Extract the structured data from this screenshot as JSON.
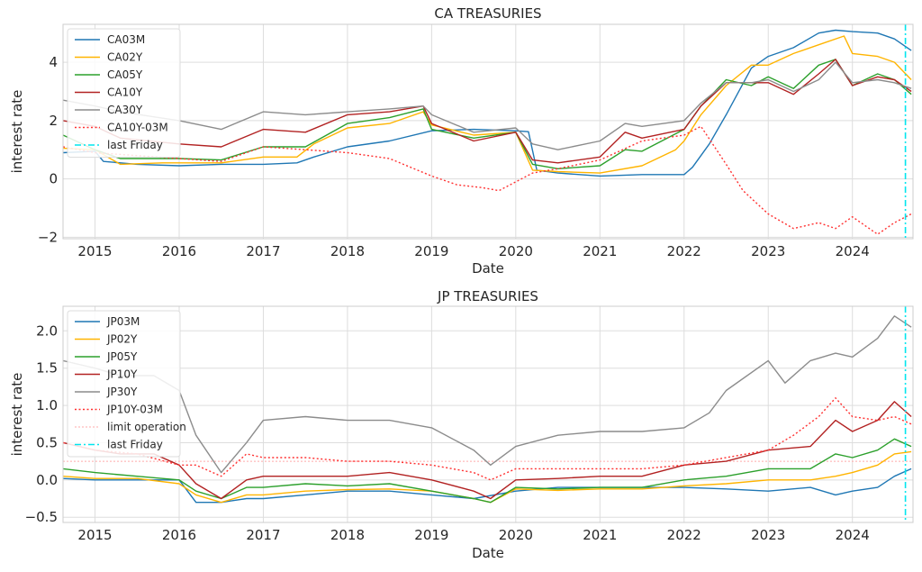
{
  "chart_data": [
    {
      "type": "line",
      "title": "CA TREASURIES",
      "xlabel": "Date",
      "ylabel": "interest rate",
      "xlim": [
        2014.62,
        2024.72
      ],
      "ylim": [
        -2.05,
        5.3
      ],
      "x_ticks": [
        2015,
        2016,
        2017,
        2018,
        2019,
        2020,
        2021,
        2022,
        2023,
        2024
      ],
      "x_tick_labels": [
        "2015",
        "2016",
        "2017",
        "2018",
        "2019",
        "2020",
        "2021",
        "2022",
        "2023",
        "2024"
      ],
      "y_ticks": [
        -2,
        0,
        2,
        4
      ],
      "y_tick_labels": [
        "−2",
        "0",
        "2",
        "4"
      ],
      "grid": true,
      "legend_position": "top-left",
      "last_friday": 2024.63,
      "series": [
        {
          "name": "CA03M",
          "color": "#1f77b4",
          "style": "solid",
          "x": [
            2014.62,
            2015.0,
            2015.1,
            2015.5,
            2016.0,
            2016.5,
            2017.0,
            2017.4,
            2017.6,
            2018.0,
            2018.5,
            2019.0,
            2019.5,
            2020.0,
            2020.15,
            2020.25,
            2020.5,
            2021.0,
            2021.5,
            2022.0,
            2022.1,
            2022.3,
            2022.5,
            2022.8,
            2023.0,
            2023.3,
            2023.6,
            2023.8,
            2024.0,
            2024.3,
            2024.5,
            2024.7
          ],
          "y": [
            0.9,
            0.95,
            0.6,
            0.5,
            0.45,
            0.5,
            0.5,
            0.55,
            0.75,
            1.1,
            1.3,
            1.65,
            1.7,
            1.65,
            1.62,
            0.3,
            0.2,
            0.1,
            0.15,
            0.15,
            0.4,
            1.2,
            2.2,
            3.8,
            4.2,
            4.5,
            5.0,
            5.1,
            5.05,
            5.0,
            4.8,
            4.4
          ]
        },
        {
          "name": "CA02Y",
          "color": "#ffb400",
          "style": "solid",
          "x": [
            2014.62,
            2015.0,
            2015.3,
            2015.8,
            2016.0,
            2016.5,
            2017.0,
            2017.4,
            2017.6,
            2018.0,
            2018.5,
            2018.9,
            2019.0,
            2019.5,
            2020.0,
            2020.2,
            2020.5,
            2021.0,
            2021.5,
            2021.9,
            2022.0,
            2022.2,
            2022.5,
            2022.8,
            2023.0,
            2023.3,
            2023.6,
            2023.9,
            2024.0,
            2024.3,
            2024.5,
            2024.7
          ],
          "y": [
            1.05,
            1.0,
            0.5,
            0.55,
            0.55,
            0.55,
            0.75,
            0.75,
            1.2,
            1.75,
            1.9,
            2.3,
            1.85,
            1.5,
            1.6,
            0.3,
            0.25,
            0.2,
            0.45,
            1.0,
            1.3,
            2.2,
            3.2,
            3.9,
            3.9,
            4.3,
            4.6,
            4.9,
            4.3,
            4.2,
            4.0,
            3.4
          ]
        },
        {
          "name": "CA05Y",
          "color": "#2ca02c",
          "style": "solid",
          "x": [
            2014.62,
            2015.0,
            2015.3,
            2016.0,
            2016.5,
            2017.0,
            2017.5,
            2018.0,
            2018.5,
            2018.9,
            2019.0,
            2019.5,
            2020.0,
            2020.2,
            2020.5,
            2021.0,
            2021.3,
            2021.5,
            2022.0,
            2022.2,
            2022.5,
            2022.8,
            2023.0,
            2023.3,
            2023.6,
            2023.8,
            2024.0,
            2024.3,
            2024.5,
            2024.7
          ],
          "y": [
            1.5,
            1.0,
            0.7,
            0.7,
            0.65,
            1.1,
            1.1,
            1.9,
            2.1,
            2.4,
            1.7,
            1.4,
            1.6,
            0.5,
            0.35,
            0.45,
            1.0,
            0.95,
            1.7,
            2.5,
            3.4,
            3.2,
            3.5,
            3.1,
            3.9,
            4.1,
            3.2,
            3.6,
            3.4,
            2.9
          ]
        },
        {
          "name": "CA10Y",
          "color": "#b22222",
          "style": "solid",
          "x": [
            2014.62,
            2015.0,
            2015.3,
            2016.0,
            2016.5,
            2017.0,
            2017.5,
            2018.0,
            2018.5,
            2018.9,
            2019.0,
            2019.5,
            2020.0,
            2020.2,
            2020.5,
            2021.0,
            2021.3,
            2021.5,
            2022.0,
            2022.2,
            2022.5,
            2022.8,
            2023.0,
            2023.3,
            2023.6,
            2023.8,
            2024.0,
            2024.3,
            2024.5,
            2024.7
          ],
          "y": [
            2.0,
            1.8,
            1.4,
            1.2,
            1.1,
            1.7,
            1.6,
            2.2,
            2.3,
            2.5,
            1.9,
            1.3,
            1.6,
            0.65,
            0.55,
            0.75,
            1.6,
            1.4,
            1.7,
            2.5,
            3.3,
            3.3,
            3.3,
            2.9,
            3.6,
            4.1,
            3.2,
            3.5,
            3.4,
            3.0
          ]
        },
        {
          "name": "CA30Y",
          "color": "#8c8c8c",
          "style": "solid",
          "x": [
            2014.62,
            2015.0,
            2015.3,
            2016.0,
            2016.5,
            2017.0,
            2017.5,
            2018.0,
            2018.5,
            2018.9,
            2019.0,
            2019.5,
            2020.0,
            2020.2,
            2020.5,
            2021.0,
            2021.3,
            2021.5,
            2022.0,
            2022.2,
            2022.5,
            2022.8,
            2023.0,
            2023.3,
            2023.6,
            2023.8,
            2024.0,
            2024.3,
            2024.5,
            2024.7
          ],
          "y": [
            2.7,
            2.5,
            2.3,
            2.0,
            1.7,
            2.3,
            2.2,
            2.3,
            2.4,
            2.5,
            2.2,
            1.6,
            1.75,
            1.2,
            1.0,
            1.3,
            1.9,
            1.8,
            2.0,
            2.6,
            3.3,
            3.3,
            3.4,
            3.0,
            3.4,
            4.0,
            3.3,
            3.4,
            3.3,
            3.1
          ]
        },
        {
          "name": "CA10Y-03M",
          "color": "#ff3030",
          "style": "dotted",
          "x": [
            2014.62,
            2015.0,
            2015.5,
            2016.0,
            2016.5,
            2017.0,
            2017.5,
            2018.0,
            2018.5,
            2019.0,
            2019.3,
            2019.6,
            2019.8,
            2020.0,
            2020.2,
            2020.5,
            2021.0,
            2021.5,
            2022.0,
            2022.2,
            2022.5,
            2022.7,
            2023.0,
            2023.3,
            2023.6,
            2023.8,
            2024.0,
            2024.3,
            2024.5,
            2024.7
          ],
          "y": [
            1.1,
            0.9,
            0.8,
            0.7,
            0.6,
            1.1,
            1.0,
            0.9,
            0.7,
            0.1,
            -0.2,
            -0.3,
            -0.4,
            -0.1,
            0.2,
            0.35,
            0.65,
            1.3,
            1.5,
            1.8,
            0.5,
            -0.4,
            -1.2,
            -1.7,
            -1.5,
            -1.7,
            -1.3,
            -1.9,
            -1.5,
            -1.2
          ]
        }
      ]
    },
    {
      "type": "line",
      "title": "JP TREASURIES",
      "xlabel": "Date",
      "ylabel": "interest rate",
      "xlim": [
        2014.62,
        2024.72
      ],
      "ylim": [
        -0.57,
        2.33
      ],
      "x_ticks": [
        2015,
        2016,
        2017,
        2018,
        2019,
        2020,
        2021,
        2022,
        2023,
        2024
      ],
      "x_tick_labels": [
        "2015",
        "2016",
        "2017",
        "2018",
        "2019",
        "2020",
        "2021",
        "2022",
        "2023",
        "2024"
      ],
      "y_ticks": [
        -0.5,
        0.0,
        0.5,
        1.0,
        1.5,
        2.0
      ],
      "y_tick_labels": [
        "−0.5",
        "0.0",
        "0.5",
        "1.0",
        "1.5",
        "2.0"
      ],
      "grid": true,
      "legend_position": "top-left",
      "last_friday": 2024.63,
      "limit_operation": 0.25,
      "series": [
        {
          "name": "JP03M",
          "color": "#1f77b4",
          "style": "solid",
          "x": [
            2014.62,
            2015.0,
            2015.5,
            2016.0,
            2016.2,
            2016.5,
            2016.8,
            2017.0,
            2017.5,
            2018.0,
            2018.5,
            2019.0,
            2019.5,
            2020.0,
            2020.5,
            2021.0,
            2021.5,
            2022.0,
            2022.5,
            2023.0,
            2023.5,
            2023.8,
            2024.0,
            2024.3,
            2024.5,
            2024.7
          ],
          "y": [
            0.02,
            0.0,
            0.0,
            0.0,
            -0.3,
            -0.3,
            -0.25,
            -0.25,
            -0.2,
            -0.15,
            -0.15,
            -0.2,
            -0.25,
            -0.15,
            -0.1,
            -0.1,
            -0.1,
            -0.1,
            -0.12,
            -0.15,
            -0.1,
            -0.2,
            -0.15,
            -0.1,
            0.05,
            0.15
          ]
        },
        {
          "name": "JP02Y",
          "color": "#ffb400",
          "style": "solid",
          "x": [
            2014.62,
            2015.0,
            2015.5,
            2016.0,
            2016.2,
            2016.5,
            2016.8,
            2017.0,
            2017.5,
            2018.0,
            2018.5,
            2019.0,
            2019.5,
            2019.7,
            2020.0,
            2020.5,
            2021.0,
            2021.5,
            2022.0,
            2022.5,
            2023.0,
            2023.5,
            2023.8,
            2024.0,
            2024.3,
            2024.5,
            2024.7
          ],
          "y": [
            0.05,
            0.02,
            0.02,
            -0.05,
            -0.2,
            -0.3,
            -0.2,
            -0.2,
            -0.15,
            -0.13,
            -0.12,
            -0.15,
            -0.25,
            -0.3,
            -0.12,
            -0.14,
            -0.12,
            -0.12,
            -0.08,
            -0.05,
            0.0,
            0.0,
            0.05,
            0.1,
            0.2,
            0.35,
            0.38
          ]
        },
        {
          "name": "JP05Y",
          "color": "#2ca02c",
          "style": "solid",
          "x": [
            2014.62,
            2015.0,
            2015.5,
            2016.0,
            2016.2,
            2016.5,
            2016.8,
            2017.0,
            2017.5,
            2018.0,
            2018.5,
            2019.0,
            2019.5,
            2019.7,
            2020.0,
            2020.5,
            2021.0,
            2021.5,
            2022.0,
            2022.5,
            2023.0,
            2023.5,
            2023.8,
            2024.0,
            2024.3,
            2024.5,
            2024.7
          ],
          "y": [
            0.15,
            0.1,
            0.05,
            0.0,
            -0.15,
            -0.25,
            -0.1,
            -0.1,
            -0.05,
            -0.08,
            -0.05,
            -0.15,
            -0.25,
            -0.3,
            -0.1,
            -0.12,
            -0.1,
            -0.1,
            0.0,
            0.05,
            0.15,
            0.15,
            0.35,
            0.3,
            0.4,
            0.55,
            0.45
          ]
        },
        {
          "name": "JP10Y",
          "color": "#b22222",
          "style": "solid",
          "x": [
            2014.62,
            2015.0,
            2015.3,
            2015.7,
            2016.0,
            2016.2,
            2016.5,
            2016.8,
            2017.0,
            2017.5,
            2018.0,
            2018.5,
            2019.0,
            2019.5,
            2019.7,
            2020.0,
            2020.5,
            2021.0,
            2021.5,
            2022.0,
            2022.5,
            2023.0,
            2023.5,
            2023.8,
            2024.0,
            2024.3,
            2024.5,
            2024.7
          ],
          "y": [
            0.5,
            0.4,
            0.35,
            0.35,
            0.2,
            -0.05,
            -0.25,
            0.0,
            0.05,
            0.05,
            0.05,
            0.1,
            0.0,
            -0.15,
            -0.25,
            0.0,
            0.02,
            0.05,
            0.05,
            0.2,
            0.25,
            0.4,
            0.45,
            0.8,
            0.65,
            0.8,
            1.05,
            0.85
          ]
        },
        {
          "name": "JP30Y",
          "color": "#8c8c8c",
          "style": "solid",
          "x": [
            2014.62,
            2015.0,
            2015.3,
            2015.7,
            2016.0,
            2016.2,
            2016.5,
            2016.8,
            2017.0,
            2017.5,
            2018.0,
            2018.5,
            2019.0,
            2019.5,
            2019.7,
            2020.0,
            2020.5,
            2021.0,
            2021.5,
            2022.0,
            2022.3,
            2022.5,
            2023.0,
            2023.2,
            2023.5,
            2023.8,
            2024.0,
            2024.3,
            2024.5,
            2024.7
          ],
          "y": [
            1.6,
            1.5,
            1.4,
            1.4,
            1.2,
            0.6,
            0.1,
            0.5,
            0.8,
            0.85,
            0.8,
            0.8,
            0.7,
            0.4,
            0.2,
            0.45,
            0.6,
            0.65,
            0.65,
            0.7,
            0.9,
            1.2,
            1.6,
            1.3,
            1.6,
            1.7,
            1.65,
            1.9,
            2.2,
            2.05
          ]
        },
        {
          "name": "JP10Y-03M",
          "color": "#ff3030",
          "style": "dotted",
          "x": [
            2014.62,
            2015.0,
            2015.5,
            2016.0,
            2016.2,
            2016.5,
            2016.8,
            2017.0,
            2017.5,
            2018.0,
            2018.5,
            2019.0,
            2019.5,
            2019.7,
            2020.0,
            2020.5,
            2021.0,
            2021.5,
            2022.0,
            2022.5,
            2023.0,
            2023.3,
            2023.6,
            2023.8,
            2024.0,
            2024.3,
            2024.5,
            2024.7
          ],
          "y": [
            0.5,
            0.4,
            0.35,
            0.2,
            0.2,
            0.05,
            0.35,
            0.3,
            0.3,
            0.25,
            0.25,
            0.2,
            0.1,
            0.0,
            0.15,
            0.15,
            0.15,
            0.15,
            0.2,
            0.3,
            0.4,
            0.6,
            0.85,
            1.1,
            0.85,
            0.8,
            0.85,
            0.75
          ]
        }
      ]
    }
  ],
  "legend_extra": {
    "limit_operation": "limit operation",
    "last_friday": "last Friday"
  },
  "colors": {
    "last_friday": "#00e5ee",
    "limit_operation": "#ffaaaa",
    "grid": "#dddddd"
  }
}
